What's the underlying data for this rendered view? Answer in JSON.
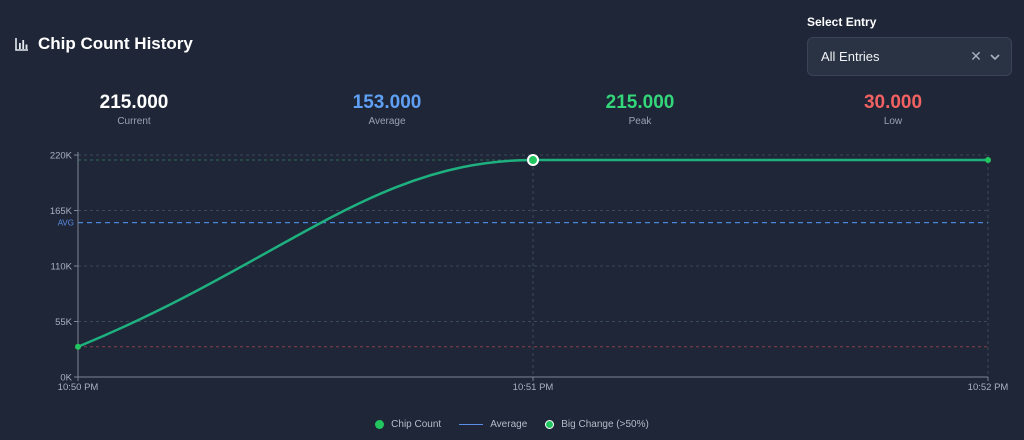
{
  "header": {
    "title": "Chip Count History"
  },
  "select": {
    "label": "Select Entry",
    "value": "All Entries"
  },
  "stats": [
    {
      "value": "215.000",
      "label": "Current",
      "color": "#ffffff"
    },
    {
      "value": "153.000",
      "label": "Average",
      "color": "#5fa0f5"
    },
    {
      "value": "215.000",
      "label": "Peak",
      "color": "#34d67a"
    },
    {
      "value": "30.000",
      "label": "Low",
      "color": "#f26262"
    }
  ],
  "chart_data": {
    "type": "line",
    "x": [
      "10:50 PM",
      "10:51 PM",
      "10:52 PM"
    ],
    "series": [
      {
        "name": "Chip Count",
        "values": [
          30000,
          215000,
          215000
        ],
        "color": "#1fb07f"
      }
    ],
    "average": 153000,
    "average_tick_label": "AVG",
    "peak": 215000,
    "low": 30000,
    "big_change_points": [
      1
    ],
    "ylim": [
      0,
      220000
    ],
    "yticks": [
      0,
      55000,
      110000,
      165000,
      220000
    ],
    "ytick_labels": [
      "0K",
      "55K",
      "110K",
      "165K",
      "220K"
    ],
    "grid": true,
    "legend": [
      "Chip Count",
      "Average",
      "Big Change (>50%)"
    ]
  }
}
